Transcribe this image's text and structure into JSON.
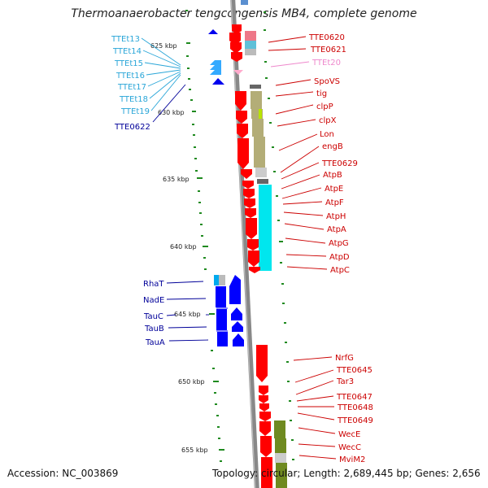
{
  "title": "Thermoanaerobacter tengcongensis MB4, complete genome",
  "accession": "Accession: NC_003869",
  "topology": "Topology: circular; Length: 2,689,445 bp; Genes: 2,656",
  "colors": {
    "backbone": "#888888",
    "forward_gene": "#ff0000",
    "reverse_gene": "#0000ff",
    "label_forward": "#cc0000",
    "label_reverse": "#000099",
    "label_light_blue": "#2aa6d8",
    "label_pink": "#ee88cc",
    "cog_olive": "#b3ad77",
    "cog_cyan": "#00e6ee",
    "cog_darkolive": "#6f8a20",
    "cog_navy": "#3a3a8a"
  },
  "kbp_ticks": [
    "625 kbp",
    "630 kbp",
    "635 kbp",
    "640 kbp",
    "645 kbp",
    "650 kbp",
    "655 kbp"
  ],
  "labels_right": [
    "TTE0620",
    "TTE0621",
    "TTEt20",
    "SpoVS",
    "tig",
    "clpP",
    "clpX",
    "Lon",
    "engB",
    "TTE0629",
    "AtpB",
    "AtpE",
    "AtpF",
    "AtpH",
    "AtpA",
    "AtpG",
    "AtpD",
    "AtpC",
    "NrfG",
    "TTE0645",
    "Tar3",
    "TTE0647",
    "TTE0648",
    "TTE0649",
    "WecE",
    "WecC",
    "MviM2"
  ],
  "labels_left": [
    "TTEt13",
    "TTEt14",
    "TTEt15",
    "TTEt16",
    "TTEt17",
    "TTEt18",
    "TTEt19",
    "TTE0622",
    "RhaT",
    "NadE",
    "TauC",
    "TauB",
    "TauA"
  ]
}
